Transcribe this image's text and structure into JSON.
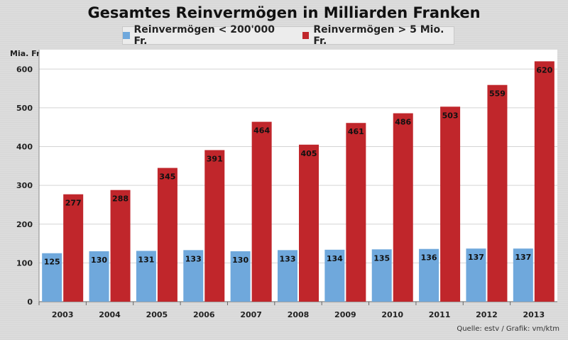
{
  "chart_data": {
    "type": "bar",
    "title": "Gesamtes Reinvermögen in Milliarden Franken",
    "ylabel": "Mia. Fr.",
    "ylim": [
      0,
      650
    ],
    "yticks": [
      0,
      100,
      200,
      300,
      400,
      500,
      600
    ],
    "grid": true,
    "legend_position": "top",
    "categories": [
      "2003",
      "2004",
      "2005",
      "2006",
      "2007",
      "2008",
      "2009",
      "2010",
      "2011",
      "2012",
      "2013"
    ],
    "series": [
      {
        "name": "Reinvermögen < 200'000 Fr.",
        "color": "#6fa8dc",
        "values": [
          125,
          130,
          131,
          133,
          130,
          133,
          134,
          135,
          136,
          137,
          137
        ]
      },
      {
        "name": "Reinvermögen > 5 Mio. Fr.",
        "color": "#c0262b",
        "values": [
          277,
          288,
          345,
          391,
          464,
          405,
          461,
          486,
          503,
          559,
          620
        ]
      }
    ]
  },
  "source": "Quelle: estv / Grafik: vm/ktm"
}
